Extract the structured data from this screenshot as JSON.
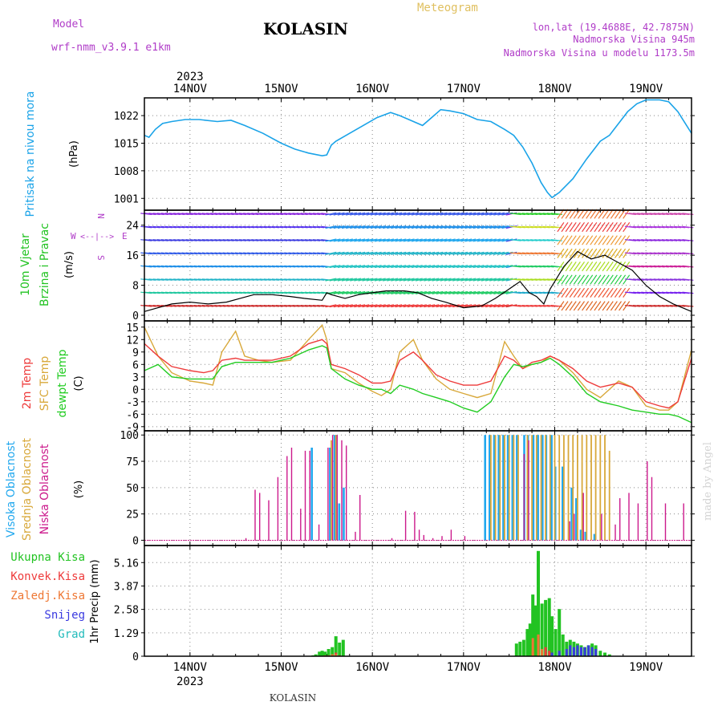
{
  "header": {
    "model_label": "Model",
    "model_name": "wrf-nmm_v3.9.1 e1km",
    "station": "KOLASIN",
    "title": "Meteogram",
    "lonlat": "lon,lat (19.4688E, 42.7875N)",
    "elevation": "Nadmorska Visina 945m",
    "model_elevation": "Nadmorska Visina u modelu 1173.5m"
  },
  "footer": {
    "station": "KOLASIN",
    "credit": "made by Angel"
  },
  "time_axis": {
    "year": "2023",
    "days": [
      "14NOV",
      "15NOV",
      "16NOV",
      "17NOV",
      "18NOV",
      "19NOV"
    ],
    "range_days": [
      13.5,
      19.5
    ]
  },
  "colors": {
    "pressure": "#1aa3e8",
    "temp2m": "#ee3b3b",
    "sfc_temp": "#d8a83a",
    "dewpoint": "#22cc22",
    "high_cloud": "#22a8ee",
    "mid_cloud": "#d8a83a",
    "low_cloud": "#cc1a8c",
    "total_precip": "#22c322",
    "conv_precip": "#ee3b3b",
    "freezing_precip": "#ee7733",
    "snow": "#3a3ae0",
    "hail": "#22bbbb",
    "title_violet": "#b03cc8",
    "title_gold": "#e0c060"
  },
  "chart_data": [
    {
      "type": "line",
      "panel": "pressure",
      "ylabel_lines": [
        "Pritisak na nivou mora",
        "(hPa)"
      ],
      "yticks": [
        "1001",
        "1008",
        "1015",
        "1022"
      ],
      "ylim": [
        998,
        1026.5
      ],
      "grid": true,
      "x": [
        13.5,
        13.55,
        13.62,
        13.7,
        13.8,
        13.95,
        14.1,
        14.3,
        14.45,
        14.6,
        14.8,
        15.0,
        15.15,
        15.3,
        15.45,
        15.5,
        15.55,
        15.6,
        15.75,
        15.9,
        16.05,
        16.2,
        16.3,
        16.4,
        16.55,
        16.65,
        16.75,
        16.85,
        17.0,
        17.15,
        17.3,
        17.45,
        17.55,
        17.65,
        17.75,
        17.85,
        17.92,
        17.97,
        18.05,
        18.2,
        18.35,
        18.5,
        18.6,
        18.7,
        18.8,
        18.9,
        19.0,
        19.15,
        19.25,
        19.35,
        19.5
      ],
      "series": [
        {
          "values": [
            1017,
            1016.5,
            1018.5,
            1020,
            1020.5,
            1021,
            1021,
            1020.5,
            1020.8,
            1019.5,
            1017.5,
            1015,
            1013.5,
            1012.5,
            1011.8,
            1012,
            1014.5,
            1015.5,
            1017.5,
            1019.5,
            1021.5,
            1022.8,
            1022,
            1021,
            1019.5,
            1021.5,
            1023.5,
            1023.2,
            1022.5,
            1021,
            1020.5,
            1018.5,
            1017,
            1014,
            1010,
            1005,
            1002.5,
            1001.2,
            1002.5,
            1006,
            1011,
            1015.5,
            1017,
            1020,
            1023,
            1025,
            1026,
            1026,
            1025.5,
            1023,
            1017.5
          ]
        }
      ]
    },
    {
      "type": "line",
      "panel": "wind",
      "ylabel_lines": [
        "10m Vjetar",
        "Brzina i Pravac",
        "(m/s)"
      ],
      "compass_labels": [
        "W",
        "E",
        "N",
        "S"
      ],
      "yticks": [
        "0",
        "8",
        "16",
        "24"
      ],
      "ylim": [
        -1.5,
        28
      ],
      "grid": true,
      "x": [
        13.5,
        13.65,
        13.8,
        14.0,
        14.2,
        14.4,
        14.55,
        14.7,
        14.9,
        15.1,
        15.25,
        15.45,
        15.5,
        15.55,
        15.7,
        15.85,
        16.0,
        16.15,
        16.35,
        16.5,
        16.65,
        16.8,
        17.0,
        17.2,
        17.35,
        17.5,
        17.62,
        17.72,
        17.8,
        17.88,
        17.95,
        18.0,
        18.1,
        18.25,
        18.4,
        18.55,
        18.7,
        18.85,
        19.0,
        19.15,
        19.3,
        19.5
      ],
      "series": [
        {
          "name": "wind_speed",
          "values": [
            1,
            2,
            3,
            3.5,
            3,
            3.5,
            4.5,
            5.5,
            5.5,
            5,
            4.5,
            4,
            6,
            5.5,
            4.5,
            5.5,
            6,
            6.5,
            6.5,
            6,
            4.5,
            3.5,
            2,
            2.5,
            4.5,
            7,
            9,
            6,
            5,
            3,
            7,
            9,
            13,
            17,
            15,
            16,
            14,
            12,
            8,
            5,
            3,
            1
          ]
        }
      ]
    },
    {
      "type": "line",
      "panel": "temperature",
      "ylabel_lines": [
        "2m Temp",
        "SFC Temp",
        "dewpt Temp",
        "(C)"
      ],
      "yticks": [
        "15",
        "12",
        "9",
        "6",
        "3",
        "0",
        "-3",
        "-6",
        "-9"
      ],
      "ylim": [
        -10,
        16.5
      ],
      "grid": true,
      "x": [
        13.5,
        13.65,
        13.8,
        14.0,
        14.15,
        14.25,
        14.35,
        14.5,
        14.6,
        14.75,
        14.9,
        15.1,
        15.3,
        15.45,
        15.5,
        15.55,
        15.7,
        15.85,
        16.0,
        16.1,
        16.2,
        16.3,
        16.45,
        16.55,
        16.7,
        16.85,
        17.0,
        17.15,
        17.3,
        17.45,
        17.55,
        17.65,
        17.75,
        17.85,
        17.95,
        18.05,
        18.2,
        18.35,
        18.5,
        18.7,
        18.85,
        19.0,
        19.15,
        19.25,
        19.35,
        19.5
      ],
      "series": [
        {
          "name": "2m Temp",
          "values": [
            11,
            8,
            5.5,
            4.5,
            4,
            4.5,
            7,
            7.5,
            7,
            7,
            7,
            8,
            11,
            12,
            11,
            6,
            5,
            3.5,
            1.5,
            1.5,
            2,
            7,
            9,
            7,
            3.5,
            2,
            1,
            1,
            2,
            8,
            7,
            5,
            6.5,
            7,
            8,
            7,
            5,
            2,
            0.5,
            1.5,
            0.5,
            -3,
            -4,
            -4.5,
            -3,
            7.5
          ]
        },
        {
          "name": "SFC Temp",
          "values": [
            15,
            8,
            4,
            2,
            1.5,
            1,
            9,
            14,
            8,
            7,
            6.5,
            7,
            12,
            15.5,
            12,
            5,
            4,
            1.5,
            -0.5,
            -1.5,
            0,
            9,
            12,
            7,
            2.5,
            0,
            -1,
            -2,
            -1,
            11.5,
            8,
            5,
            6,
            6.5,
            8,
            7,
            4,
            0,
            -2,
            2,
            0.5,
            -4,
            -5,
            -5,
            -3,
            9.5
          ]
        },
        {
          "name": "dewpt Temp",
          "values": [
            4.5,
            6,
            3,
            2.5,
            2.5,
            2.5,
            5.5,
            6.5,
            6.5,
            6.5,
            6.5,
            7.5,
            9.5,
            10.5,
            10,
            5,
            2.5,
            1,
            0,
            0,
            -1,
            1,
            0,
            -1,
            -2,
            -3,
            -4.5,
            -5.5,
            -3,
            3,
            6,
            5.5,
            6,
            6.5,
            7.5,
            6,
            3,
            -1,
            -3,
            -4,
            -5,
            -5.5,
            -6,
            -6,
            -6.5,
            -8
          ]
        }
      ]
    },
    {
      "type": "bar",
      "panel": "clouds",
      "ylabel_lines": [
        "Visoka Oblacnost",
        "Srednja Oblacnost",
        "Niska Oblacnost",
        "(%)"
      ],
      "yticks": [
        "0",
        "25",
        "50",
        "75",
        "100"
      ],
      "ylim": [
        -5,
        104
      ],
      "grid": true,
      "series": [
        {
          "name": "Visoka Oblacnost",
          "x": [
            15.35,
            15.55,
            15.6,
            15.62,
            15.65,
            15.7,
            17.25,
            17.3,
            17.35,
            17.4,
            17.45,
            17.5,
            17.55,
            17.6,
            17.68,
            17.72,
            17.78,
            17.83,
            17.88,
            17.92,
            17.98,
            18.02,
            18.1,
            18.2,
            18.25,
            18.3,
            18.35,
            18.45
          ],
          "values": [
            88,
            88,
            100,
            100,
            35,
            50,
            100,
            100,
            100,
            100,
            100,
            100,
            100,
            100,
            100,
            100,
            100,
            100,
            100,
            100,
            100,
            70,
            70,
            50,
            40,
            10,
            8,
            6
          ]
        },
        {
          "name": "Srednja Oblacnost",
          "x": [
            15.55,
            15.6,
            17.3,
            17.35,
            17.4,
            17.45,
            17.5,
            17.55,
            17.6,
            17.7,
            17.75,
            17.8,
            17.85,
            17.9,
            17.95,
            18.0,
            18.05,
            18.1,
            18.15,
            18.2,
            18.25,
            18.3,
            18.35,
            18.4,
            18.45,
            18.5,
            18.55,
            18.6
          ],
          "values": [
            95,
            100,
            100,
            100,
            100,
            100,
            100,
            100,
            100,
            100,
            100,
            100,
            100,
            100,
            100,
            100,
            100,
            100,
            100,
            100,
            100,
            100,
            100,
            100,
            100,
            100,
            100,
            85
          ]
        },
        {
          "name": "Niska Oblacnost",
          "x": [
            14.6,
            14.7,
            14.75,
            14.85,
            14.95,
            15.05,
            15.1,
            15.2,
            15.25,
            15.3,
            15.4,
            15.5,
            15.55,
            15.6,
            15.65,
            15.7,
            15.8,
            15.85,
            16.2,
            16.35,
            16.45,
            16.5,
            16.55,
            16.65,
            16.75,
            16.85,
            17.0,
            17.65,
            17.7,
            18.15,
            18.2,
            18.3,
            18.5,
            18.65,
            18.7,
            18.8,
            18.9,
            19.0,
            19.05,
            19.2,
            19.4
          ],
          "values": [
            2,
            48,
            45,
            38,
            60,
            80,
            88,
            30,
            85,
            85,
            15,
            88,
            100,
            100,
            95,
            90,
            8,
            43,
            2,
            28,
            27,
            10,
            5,
            2,
            4,
            10,
            4,
            82,
            95,
            18,
            25,
            45,
            25,
            15,
            40,
            45,
            35,
            75,
            60,
            35,
            35
          ]
        }
      ]
    },
    {
      "type": "bar",
      "panel": "precipitation",
      "ylabel_lines": [
        "1hr Precip (mm)"
      ],
      "legend": [
        "Ukupna Kisa",
        "Konvek.Kisa",
        "Zaledj.Kisa",
        "Snijeg",
        "Grad"
      ],
      "yticks": [
        "0",
        "1.29",
        "2.58",
        "3.87",
        "5.16"
      ],
      "ylim": [
        0,
        6.1
      ],
      "grid": true,
      "series": [
        {
          "name": "Ukupna Kisa",
          "x": [
            15.35,
            15.38,
            15.42,
            15.45,
            15.48,
            15.52,
            15.56,
            15.6,
            15.64,
            15.68,
            17.58,
            17.62,
            17.66,
            17.7,
            17.73,
            17.76,
            17.79,
            17.82,
            17.86,
            17.9,
            17.94,
            17.97,
            18.01,
            18.05,
            18.09,
            18.13,
            18.17,
            18.21,
            18.25,
            18.29,
            18.33,
            18.37,
            18.41,
            18.45,
            18.5,
            18.55,
            18.6
          ],
          "values": [
            0.05,
            0.1,
            0.25,
            0.3,
            0.25,
            0.4,
            0.5,
            1.1,
            0.75,
            0.9,
            0.7,
            0.8,
            0.9,
            1.5,
            1.8,
            3.4,
            2.8,
            5.8,
            2.9,
            3.1,
            3.2,
            2.2,
            1.5,
            2.6,
            1.2,
            0.8,
            0.9,
            0.8,
            0.7,
            0.6,
            0.5,
            0.6,
            0.7,
            0.6,
            0.3,
            0.2,
            0.1
          ]
        },
        {
          "name": "Konvek.Kisa",
          "x": [
            15.48,
            15.52,
            15.56,
            15.6,
            15.64,
            17.76,
            17.82,
            17.9,
            17.94
          ],
          "values": [
            0.05,
            0.05,
            0.1,
            0.2,
            0.05,
            0.3,
            0.8,
            0.5,
            0.3
          ]
        },
        {
          "name": "Zaledj.Kisa",
          "x": [
            15.56,
            15.6,
            17.76,
            17.82,
            17.86
          ],
          "values": [
            0.1,
            0.1,
            1.0,
            1.2,
            0.4
          ]
        },
        {
          "name": "Snijeg",
          "x": [
            17.97,
            18.05,
            18.13,
            18.17,
            18.21,
            18.25,
            18.29,
            18.33,
            18.37,
            18.41,
            18.45
          ],
          "values": [
            0.2,
            0.3,
            0.4,
            0.6,
            0.5,
            0.6,
            0.5,
            0.5,
            0.6,
            0.5,
            0.4
          ]
        },
        {
          "name": "Grad",
          "x": [],
          "values": []
        }
      ]
    }
  ]
}
